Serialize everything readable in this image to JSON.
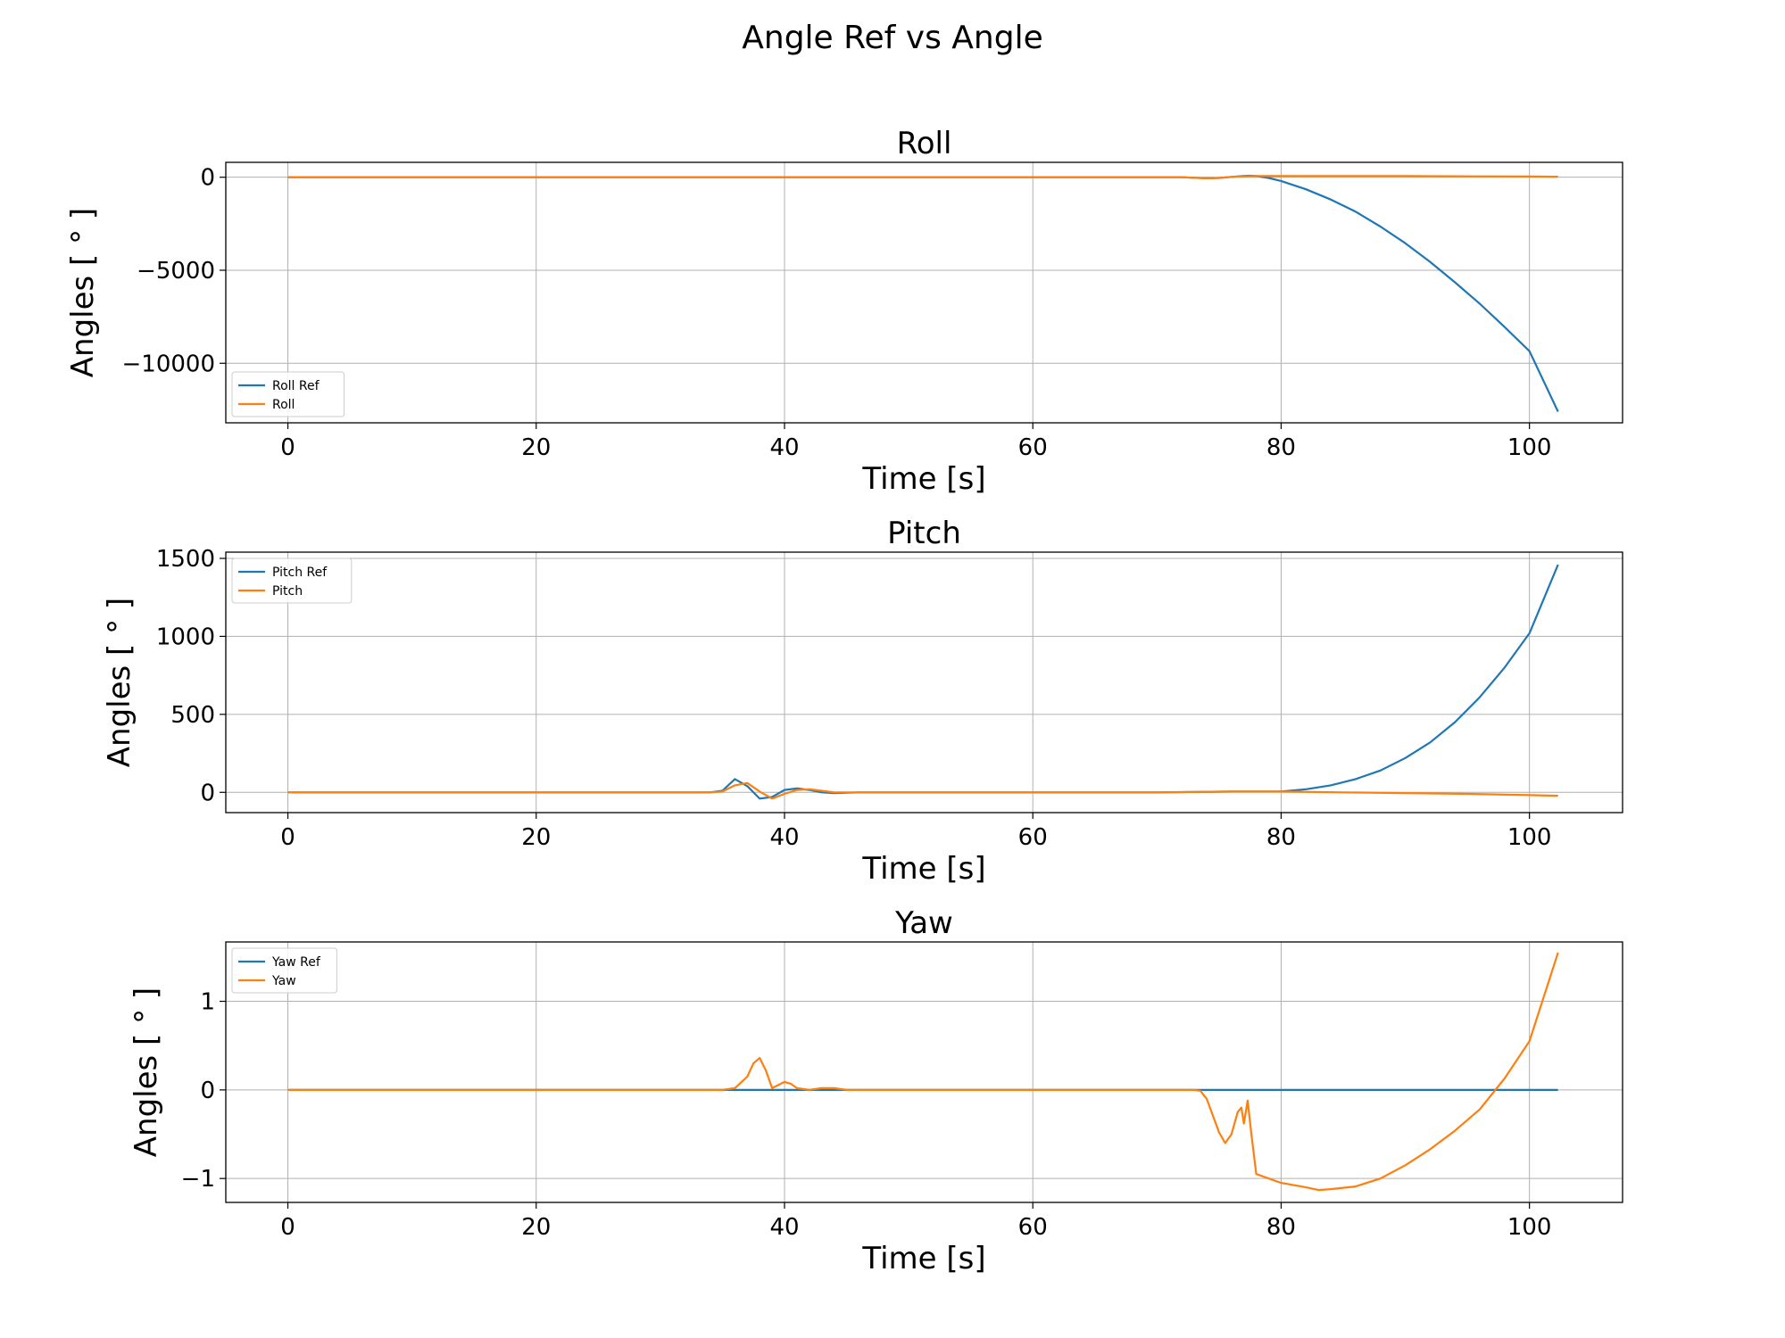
{
  "figure": {
    "suptitle": "Angle Ref vs Angle"
  },
  "chart_data": [
    {
      "type": "line",
      "title": "Roll",
      "xlabel": "Time [s]",
      "ylabel": "Angles [ ° ]",
      "xlim": [
        -5,
        107.5
      ],
      "ylim": [
        -13200,
        800
      ],
      "xticks": [
        0,
        20,
        40,
        60,
        80,
        100
      ],
      "xtick_labels": [
        "0",
        "20",
        "40",
        "60",
        "80",
        "100"
      ],
      "yticks": [
        -10000,
        -5000,
        0
      ],
      "ytick_labels": [
        "−10000",
        "−5000",
        "0"
      ],
      "grid": true,
      "legend_loc": "lower-left",
      "series": [
        {
          "name": "Roll Ref",
          "color": "#1f77b4",
          "x": [
            0,
            20,
            40,
            60,
            72,
            73,
            74,
            75,
            76,
            77,
            77.5,
            78,
            79,
            80,
            82,
            84,
            86,
            88,
            90,
            92,
            94,
            96,
            98,
            100,
            102.3
          ],
          "y": [
            0,
            0,
            0,
            0,
            0,
            -30,
            -60,
            -40,
            20,
            70,
            80,
            60,
            -40,
            -200,
            -650,
            -1200,
            -1850,
            -2650,
            -3550,
            -4550,
            -5650,
            -6800,
            -8050,
            -9350,
            -12600
          ]
        },
        {
          "name": "Roll",
          "color": "#ff7f0e",
          "x": [
            0,
            20,
            40,
            60,
            72,
            73,
            74,
            75,
            76,
            77,
            78,
            80,
            90,
            100,
            102.3
          ],
          "y": [
            0,
            0,
            0,
            0,
            0,
            -30,
            -60,
            -40,
            20,
            50,
            60,
            60,
            60,
            40,
            30
          ]
        }
      ]
    },
    {
      "type": "line",
      "title": "Pitch",
      "xlabel": "Time [s]",
      "ylabel": "Angles [ ° ]",
      "xlim": [
        -5,
        107.5
      ],
      "ylim": [
        -130,
        1540
      ],
      "xticks": [
        0,
        20,
        40,
        60,
        80,
        100
      ],
      "xtick_labels": [
        "0",
        "20",
        "40",
        "60",
        "80",
        "100"
      ],
      "yticks": [
        0,
        500,
        1000,
        1500
      ],
      "ytick_labels": [
        "0",
        "500",
        "1000",
        "1500"
      ],
      "grid": true,
      "legend_loc": "top-left",
      "series": [
        {
          "name": "Pitch Ref",
          "color": "#1f77b4",
          "x": [
            0,
            20,
            34,
            35,
            36,
            37,
            38,
            39,
            40,
            41,
            42,
            43,
            44,
            46,
            50,
            60,
            70,
            76,
            80,
            82,
            84,
            86,
            88,
            90,
            92,
            94,
            96,
            98,
            100,
            102.3
          ],
          "y": [
            0,
            0,
            0,
            10,
            85,
            40,
            -40,
            -30,
            15,
            25,
            15,
            0,
            -5,
            0,
            0,
            0,
            0,
            5,
            5,
            20,
            45,
            85,
            140,
            220,
            320,
            450,
            610,
            800,
            1020,
            1460
          ]
        },
        {
          "name": "Pitch",
          "color": "#ff7f0e",
          "x": [
            0,
            20,
            34,
            35,
            36,
            37,
            38,
            39,
            40,
            41,
            42,
            43,
            44,
            46,
            50,
            60,
            70,
            76,
            80,
            85,
            90,
            95,
            100,
            102.3
          ],
          "y": [
            0,
            0,
            0,
            5,
            45,
            60,
            5,
            -40,
            -10,
            15,
            20,
            10,
            0,
            0,
            0,
            0,
            0,
            5,
            5,
            0,
            -5,
            -10,
            -18,
            -22
          ]
        }
      ]
    },
    {
      "type": "line",
      "title": "Yaw",
      "xlabel": "Time [s]",
      "ylabel": "Angles [ ° ]",
      "xlim": [
        -5,
        107.5
      ],
      "ylim": [
        -1.27,
        1.67
      ],
      "xticks": [
        0,
        20,
        40,
        60,
        80,
        100
      ],
      "xtick_labels": [
        "0",
        "20",
        "40",
        "60",
        "80",
        "100"
      ],
      "yticks": [
        -1,
        0,
        1
      ],
      "ytick_labels": [
        "−1",
        "0",
        "1"
      ],
      "grid": true,
      "legend_loc": "top-left",
      "series": [
        {
          "name": "Yaw Ref",
          "color": "#1f77b4",
          "x": [
            0,
            102.3
          ],
          "y": [
            0,
            0
          ]
        },
        {
          "name": "Yaw",
          "color": "#ff7f0e",
          "x": [
            0,
            20,
            35,
            36,
            37,
            37.5,
            38,
            38.5,
            39,
            40,
            40.5,
            41,
            42,
            43,
            44,
            45,
            46,
            50,
            60,
            70,
            73,
            73.5,
            74,
            75,
            75.5,
            76,
            76.5,
            76.8,
            77,
            77.3,
            77.6,
            78,
            80,
            82,
            83,
            84,
            86,
            88,
            90,
            92,
            94,
            96,
            98,
            100,
            102.3
          ],
          "y": [
            0,
            0,
            0,
            0.02,
            0.15,
            0.3,
            0.36,
            0.22,
            0.02,
            0.09,
            0.07,
            0.02,
            0.0,
            0.02,
            0.02,
            0.0,
            0.0,
            0,
            0,
            0,
            0,
            -0.01,
            -0.1,
            -0.48,
            -0.6,
            -0.5,
            -0.25,
            -0.2,
            -0.38,
            -0.12,
            -0.5,
            -0.95,
            -1.05,
            -1.1,
            -1.13,
            -1.12,
            -1.09,
            -1.0,
            -0.85,
            -0.67,
            -0.46,
            -0.22,
            0.13,
            0.55,
            1.55
          ]
        }
      ]
    }
  ]
}
